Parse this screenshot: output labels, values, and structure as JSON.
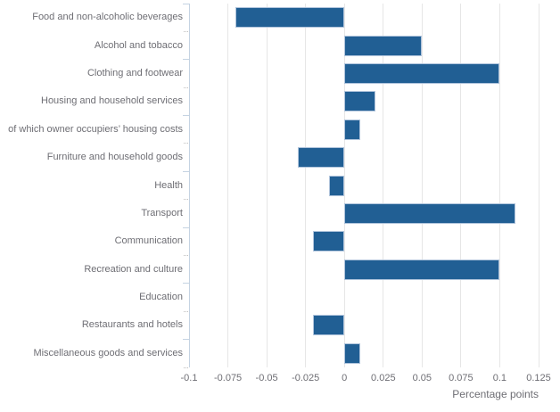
{
  "chart_data": {
    "type": "bar",
    "orientation": "horizontal",
    "title": "",
    "xlabel": "Percentage points",
    "ylabel": "",
    "xlim": [
      -0.1,
      0.125
    ],
    "xticks": [
      -0.1,
      -0.075,
      -0.05,
      -0.025,
      0,
      0.025,
      0.05,
      0.075,
      0.1,
      0.125
    ],
    "xtick_labels": [
      "-0.1",
      "-0.075",
      "-0.05",
      "-0.025",
      "0",
      "0.025",
      "0.05",
      "0.075",
      "0.1",
      "0.125"
    ],
    "categories": [
      "Food and non-alcoholic beverages",
      "Alcohol and tobacco",
      "Clothing and footwear",
      "Housing and household services",
      "of which owner occupiers’ housing costs",
      "Furniture and household goods",
      "Health",
      "Transport",
      "Communication",
      "Recreation and culture",
      "Education",
      "Restaurants and hotels",
      "Miscellaneous goods and services"
    ],
    "values": [
      -0.07,
      0.05,
      0.1,
      0.02,
      0.01,
      -0.03,
      -0.01,
      0.11,
      -0.02,
      0.1,
      0,
      -0.02,
      0.01
    ],
    "grid": true,
    "legend": false,
    "colors": {
      "bar": "#215f94",
      "bar_border": "#b0c4dc",
      "gridline": "#e6e6e6",
      "axis_line": "#c5d3e2",
      "tick_dotted": "#bcbcbc",
      "text": "#6e6e74"
    }
  }
}
